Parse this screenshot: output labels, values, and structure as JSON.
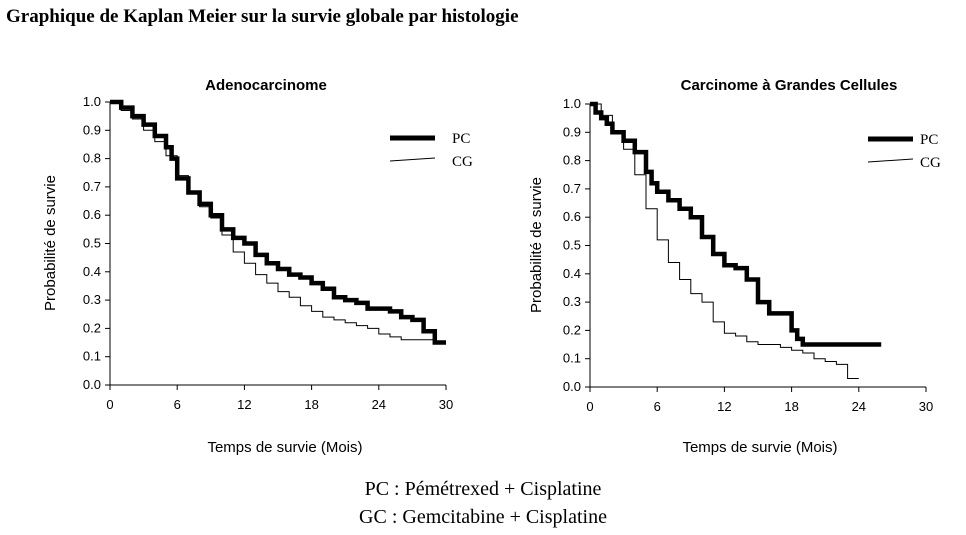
{
  "page_title": "Graphique de Kaplan Meier sur la survie globale par histologie",
  "footnotes": {
    "line1": "PC : Pémétrexed + Cisplatine",
    "line2": "GC : Gemcitabine + Cisplatine"
  },
  "colors": {
    "ink": "#000000"
  },
  "chart_data": [
    {
      "type": "line",
      "title": "Adenocarcinome",
      "xlabel": "Temps de survie (Mois)",
      "ylabel": "Probabilité de survie",
      "xlim": [
        0,
        30
      ],
      "ylim": [
        0,
        1
      ],
      "xticks": [
        "0",
        "6",
        "12",
        "18",
        "24",
        "30"
      ],
      "yticks": [
        "0.0",
        "0.1",
        "0.2",
        "0.3",
        "0.4",
        "0.5",
        "0.6",
        "0.7",
        "0.8",
        "0.9",
        "1.0"
      ],
      "legend_position": "top-right",
      "series": [
        {
          "name": "PC",
          "style": "thick",
          "x": [
            0,
            1,
            2,
            3,
            4,
            5,
            5.5,
            6,
            7,
            8,
            9,
            10,
            11,
            12,
            13,
            14,
            15,
            16,
            17,
            18,
            19,
            20,
            21,
            22,
            23,
            24,
            25,
            26,
            27,
            28,
            29,
            30
          ],
          "y": [
            1.0,
            0.98,
            0.95,
            0.92,
            0.88,
            0.84,
            0.8,
            0.73,
            0.68,
            0.64,
            0.6,
            0.55,
            0.52,
            0.5,
            0.46,
            0.43,
            0.41,
            0.39,
            0.38,
            0.36,
            0.34,
            0.31,
            0.3,
            0.29,
            0.27,
            0.27,
            0.26,
            0.24,
            0.23,
            0.19,
            0.15,
            0.15
          ]
        },
        {
          "name": "CG",
          "style": "thin",
          "x": [
            0,
            1,
            2,
            3,
            4,
            5,
            6,
            7,
            8,
            9,
            10,
            11,
            12,
            13,
            14,
            15,
            16,
            17,
            18,
            19,
            20,
            21,
            22,
            23,
            24,
            25,
            26,
            27,
            28,
            29
          ],
          "y": [
            1.0,
            0.97,
            0.94,
            0.9,
            0.86,
            0.81,
            0.74,
            0.68,
            0.63,
            0.59,
            0.53,
            0.47,
            0.43,
            0.39,
            0.36,
            0.33,
            0.31,
            0.28,
            0.26,
            0.24,
            0.23,
            0.22,
            0.21,
            0.2,
            0.18,
            0.17,
            0.16,
            0.16,
            0.16,
            0.16
          ]
        }
      ]
    },
    {
      "type": "line",
      "title": "Carcinome à Grandes Cellules",
      "xlabel": "Temps de survie (Mois)",
      "ylabel": "Probabilité de survie",
      "xlim": [
        0,
        30
      ],
      "ylim": [
        0,
        1
      ],
      "xticks": [
        "0",
        "6",
        "12",
        "18",
        "24",
        "30"
      ],
      "yticks": [
        "0.0",
        "0.1",
        "0.2",
        "0.3",
        "0.4",
        "0.5",
        "0.6",
        "0.7",
        "0.8",
        "0.9",
        "1.0"
      ],
      "legend_position": "top-right",
      "series": [
        {
          "name": "PC",
          "style": "thick",
          "x": [
            0,
            0.5,
            1,
            1.5,
            2,
            3,
            4,
            5,
            5.5,
            6,
            7,
            8,
            9,
            10,
            11,
            12,
            13,
            14,
            15,
            16,
            17,
            18,
            18.5,
            19,
            20,
            22,
            24,
            26
          ],
          "y": [
            1.0,
            0.97,
            0.95,
            0.93,
            0.9,
            0.87,
            0.83,
            0.76,
            0.72,
            0.69,
            0.66,
            0.63,
            0.6,
            0.53,
            0.47,
            0.43,
            0.42,
            0.38,
            0.3,
            0.26,
            0.26,
            0.2,
            0.17,
            0.15,
            0.15,
            0.15,
            0.15,
            0.15
          ]
        },
        {
          "name": "CG",
          "style": "thin",
          "x": [
            0,
            1,
            2,
            3,
            4,
            5,
            6,
            7,
            8,
            9,
            10,
            11,
            12,
            13,
            14,
            15,
            16,
            17,
            18,
            19,
            20,
            21,
            22,
            23,
            24
          ],
          "y": [
            1.0,
            0.96,
            0.9,
            0.84,
            0.75,
            0.63,
            0.52,
            0.44,
            0.38,
            0.33,
            0.3,
            0.23,
            0.19,
            0.18,
            0.16,
            0.15,
            0.15,
            0.14,
            0.13,
            0.12,
            0.1,
            0.09,
            0.08,
            0.03,
            0.03
          ]
        }
      ]
    }
  ]
}
